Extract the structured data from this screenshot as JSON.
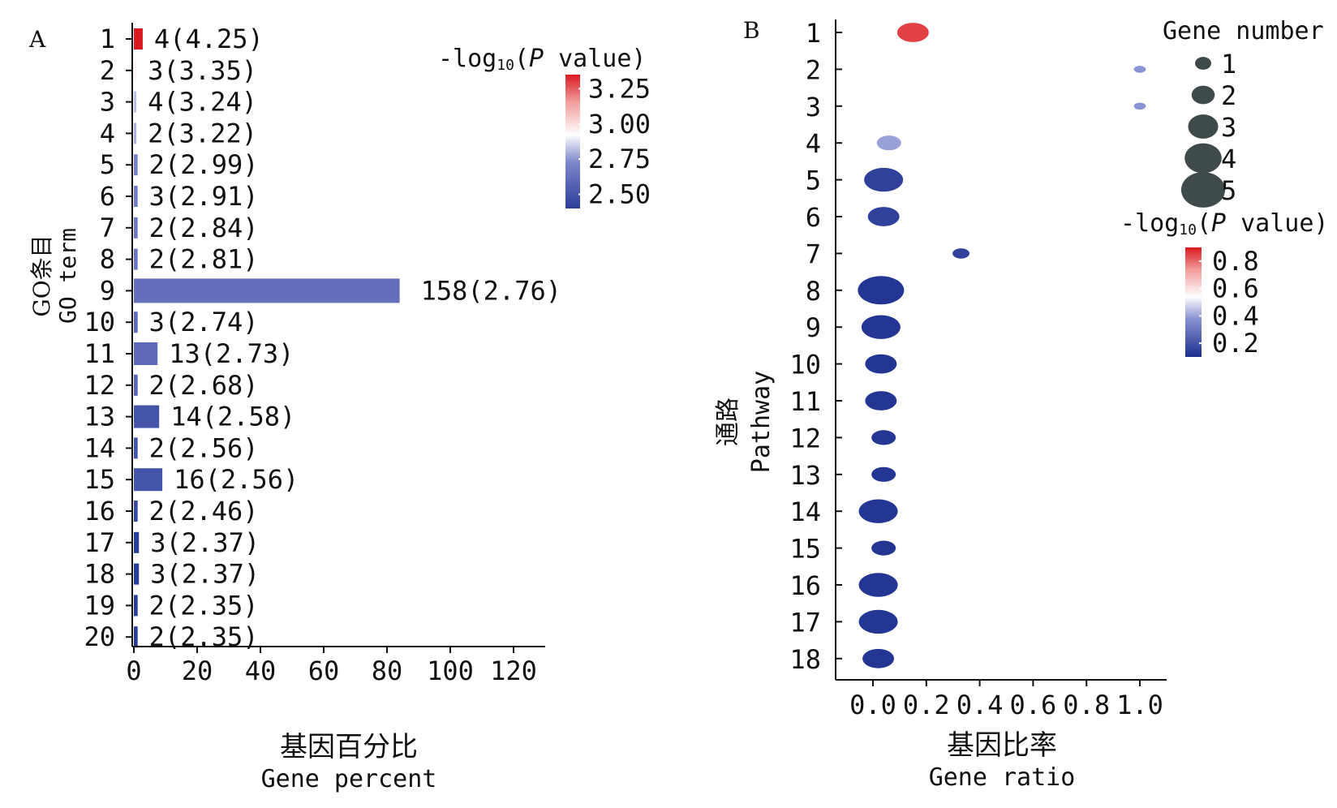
{
  "chart_data": [
    {
      "panel_label": "A",
      "type": "bar",
      "orientation": "horizontal",
      "ylabel_cn": "GO条目",
      "ylabel_en": "GO term",
      "xlabel_cn": "基因百分比",
      "xlabel_en": "Gene percent",
      "xlim": [
        0,
        130
      ],
      "xticks": [
        "0",
        "20",
        "40",
        "60",
        "80",
        "100",
        "120"
      ],
      "xtick_values": [
        0,
        20,
        40,
        60,
        80,
        100,
        120
      ],
      "categories": [
        "1",
        "2",
        "3",
        "4",
        "5",
        "6",
        "7",
        "8",
        "9",
        "10",
        "11",
        "12",
        "13",
        "14",
        "15",
        "16",
        "17",
        "18",
        "19",
        "20"
      ],
      "values": [
        2.8,
        0.8,
        0.8,
        0.8,
        1.2,
        1.2,
        1.2,
        1.2,
        84,
        1.2,
        7.5,
        1.2,
        8,
        1.2,
        9,
        1.2,
        1.6,
        1.6,
        1.2,
        1.2
      ],
      "labels": [
        "4(4.25)",
        "3(3.35)",
        "4(3.24)",
        "2(3.22)",
        "2(2.99)",
        "3(2.91)",
        "2(2.84)",
        "2(2.81)",
        "158(2.76)",
        "3(2.74)",
        "13(2.73)",
        "2(2.68)",
        "14(2.58)",
        "2(2.56)",
        "16(2.56)",
        "2(2.46)",
        "3(2.37)",
        "3(2.37)",
        "2(2.35)",
        "2(2.35)"
      ],
      "neg_log10_p": [
        3.35,
        2.95,
        2.82,
        2.8,
        2.7,
        2.68,
        2.66,
        2.65,
        2.62,
        2.6,
        2.6,
        2.58,
        2.5,
        2.5,
        2.5,
        2.45,
        2.4,
        2.4,
        2.4,
        2.4
      ],
      "legend": {
        "title_prefix": "-log",
        "title_sub": "10",
        "title_p": "P",
        "title_suffix": " value)",
        "ticks": [
          "3.25",
          "3.00",
          "2.75",
          "2.50"
        ],
        "range": [
          2.4,
          3.35
        ]
      },
      "grid": false
    },
    {
      "panel_label": "B",
      "type": "scatter",
      "ylabel_cn": "通路",
      "ylabel_en": "Pathway",
      "xlabel_cn": "基因比率",
      "xlabel_en": "Gene ratio",
      "xlim": [
        -0.13,
        1.05
      ],
      "xticks": [
        "0.0",
        "0.2",
        "0.4",
        "0.6",
        "0.8",
        "1.0"
      ],
      "xtick_values": [
        0.0,
        0.2,
        0.4,
        0.6,
        0.8,
        1.0
      ],
      "categories": [
        "1",
        "2",
        "3",
        "4",
        "5",
        "6",
        "7",
        "8",
        "9",
        "10",
        "11",
        "12",
        "13",
        "14",
        "15",
        "16",
        "17",
        "18"
      ],
      "points": [
        {
          "pathway": "1",
          "x": 0.15,
          "size": 3,
          "neg_log10_p": 0.85
        },
        {
          "pathway": "2",
          "x": 1.0,
          "size": 0.3,
          "neg_log10_p": 0.38
        },
        {
          "pathway": "3",
          "x": 1.0,
          "size": 0.3,
          "neg_log10_p": 0.38
        },
        {
          "pathway": "4",
          "x": 0.06,
          "size": 2,
          "neg_log10_p": 0.4
        },
        {
          "pathway": "5",
          "x": 0.04,
          "size": 4,
          "neg_log10_p": 0.15
        },
        {
          "pathway": "6",
          "x": 0.04,
          "size": 3,
          "neg_log10_p": 0.15
        },
        {
          "pathway": "7",
          "x": 0.33,
          "size": 1,
          "neg_log10_p": 0.15
        },
        {
          "pathway": "8",
          "x": 0.03,
          "size": 5,
          "neg_log10_p": 0.12
        },
        {
          "pathway": "9",
          "x": 0.03,
          "size": 4,
          "neg_log10_p": 0.12
        },
        {
          "pathway": "10",
          "x": 0.03,
          "size": 3,
          "neg_log10_p": 0.12
        },
        {
          "pathway": "11",
          "x": 0.03,
          "size": 3,
          "neg_log10_p": 0.12
        },
        {
          "pathway": "12",
          "x": 0.04,
          "size": 2,
          "neg_log10_p": 0.12
        },
        {
          "pathway": "13",
          "x": 0.04,
          "size": 2,
          "neg_log10_p": 0.12
        },
        {
          "pathway": "14",
          "x": 0.02,
          "size": 4,
          "neg_log10_p": 0.12
        },
        {
          "pathway": "15",
          "x": 0.04,
          "size": 2,
          "neg_log10_p": 0.12
        },
        {
          "pathway": "16",
          "x": 0.02,
          "size": 4,
          "neg_log10_p": 0.12
        },
        {
          "pathway": "17",
          "x": 0.02,
          "size": 4,
          "neg_log10_p": 0.12
        },
        {
          "pathway": "18",
          "x": 0.02,
          "size": 3,
          "neg_log10_p": 0.12
        }
      ],
      "size_legend": {
        "title": "Gene number",
        "values": [
          "1",
          "2",
          "3",
          "4",
          "5"
        ]
      },
      "color_legend": {
        "title_prefix": "-log",
        "title_sub": "10",
        "title_p": "P",
        "title_suffix": " value)",
        "ticks": [
          "0.8",
          "0.6",
          "0.4",
          "0.2"
        ],
        "range": [
          0.1,
          0.9
        ]
      },
      "grid": false
    }
  ]
}
